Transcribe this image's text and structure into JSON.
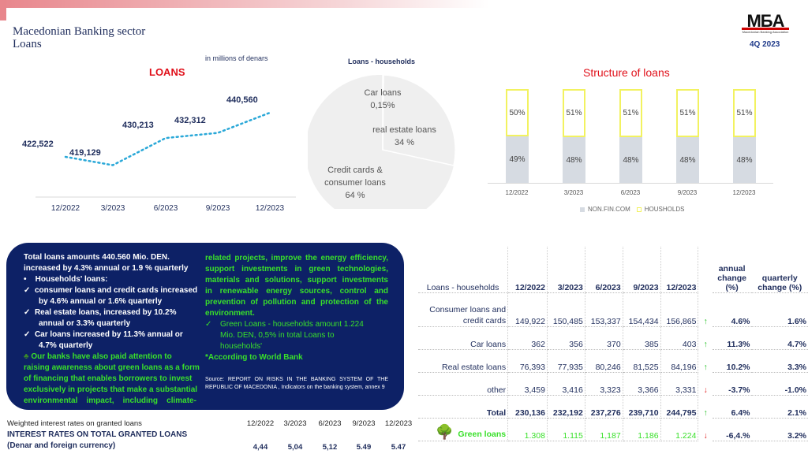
{
  "header": {
    "title_line1": "Macedonian Banking sector",
    "title_line2": "Loans",
    "logo_text": "MБA",
    "logo_sub": "Macedonian Banking Association",
    "quarter": "4Q 2023"
  },
  "colors": {
    "line": "#2aa8d8",
    "households_border": "#f2f260",
    "nonfin": "#d6dbe2",
    "pie": "#efefef",
    "box": "#0d2166",
    "green": "#39e02a",
    "title_red": "#e0101a"
  },
  "chart_data": [
    {
      "type": "line",
      "title": "LOANS",
      "subtitle": "in millions of denars",
      "categories": [
        "12/2022",
        "3/2023",
        "6/2023",
        "9/2023",
        "12/2023"
      ],
      "values": [
        422522,
        419129,
        430213,
        432312,
        440560
      ],
      "labels": [
        "422,522",
        "419,129",
        "430,213",
        "432,312",
        "440,560"
      ]
    },
    {
      "type": "pie",
      "title": "Loans -  households",
      "slices": [
        {
          "label": "Car loans",
          "value_label": "0,15%",
          "value": 0.15
        },
        {
          "label": "real estate loans",
          "value_label": "34 %",
          "value": 34
        },
        {
          "label": "Credit cards & consumer loans",
          "value_label": "64 %",
          "value": 64
        }
      ]
    },
    {
      "type": "bar",
      "stacked": true,
      "title": "Structure of loans",
      "categories": [
        "12/2022",
        "3/2023",
        "6/2023",
        "9/2023",
        "12/2023"
      ],
      "series": [
        {
          "name": "NON.FIN.COM",
          "values": [
            49,
            48,
            48,
            48,
            48
          ]
        },
        {
          "name": "HOUSHOLDS",
          "values": [
            50,
            51,
            51,
            51,
            51
          ]
        }
      ],
      "legend": "bottom"
    }
  ],
  "text_box": {
    "left": [
      "Total loans amounts 440.560 Mio. DEN.",
      "increased by 4.3% annual or 1.9 % quarterly",
      "Households' loans:",
      "consumer loans and credit cards increased",
      "by 4.6% annual or 1.6% quarterly",
      "Real estate loans, increased by 10.2%",
      "annual or 3.3% quarterly",
      "Car loans increased by 11.3% annual or",
      "4.7% quarterly"
    ],
    "green_left": [
      "Our banks have also paid attention to",
      "raising awareness about green loans as a form",
      "of financing that enables borrowers to invest",
      "exclusively in projects that make a substantial",
      "environmental    impact,    including    climate-"
    ],
    "green_right": [
      "related projects, improve the energy efficiency,",
      "support investments in green technologies,",
      "materials and solutions, support investments",
      "in renewable energy sources, control and",
      "prevention of pollution and protection of the",
      "environment."
    ],
    "green_loans": [
      "Green Loans -  households amount 1.224",
      "Mio.  DEN,  0,5%  in  total  Loans  to",
      "households'"
    ],
    "world_bank": "*According to World Bank",
    "source": "Source: REPORT ON RISKS IN THE BANKING SYSTEM OF THE REPUBLIC OF MACEDONIA , Indicators on the banking system, annex 9"
  },
  "rates": {
    "caption": "Weighted interest rates on granted loans",
    "title": "INTEREST RATES ON TOTAL GRANTED LOANS",
    "subtitle": "(Denar and foreign currency)",
    "periods": [
      "12/2022",
      "3/2023",
      "6/2023",
      "9/2023",
      "12/2023"
    ],
    "values": [
      "4,44",
      "5,04",
      "5,12",
      "5.49",
      "5.47"
    ]
  },
  "table": {
    "headers": [
      "Loans -  households",
      "12/2022",
      "3/2023",
      "6/2023",
      "9/2023",
      "12/2023",
      "",
      "annual change (%)",
      "quarterly change (%)"
    ],
    "rows": [
      {
        "label": "Consumer loans and credit cards",
        "values": [
          "149,922",
          "150,485",
          "153,337",
          "154,434",
          "156,865"
        ],
        "trend": "up",
        "annual": "4.6%",
        "quarterly": "1.6%"
      },
      {
        "label": "Car loans",
        "values": [
          "362",
          "356",
          "370",
          "385",
          "403"
        ],
        "trend": "up",
        "annual": "11.3%",
        "quarterly": "4.7%"
      },
      {
        "label": "Real estate loans",
        "values": [
          "76,393",
          "77,935",
          "80,246",
          "81,525",
          "84,196"
        ],
        "trend": "up",
        "annual": "10.2%",
        "quarterly": "3.3%"
      },
      {
        "label": "other",
        "values": [
          "3,459",
          "3,416",
          "3,323",
          "3,366",
          "3,331"
        ],
        "trend": "down",
        "annual": "-3.7%",
        "quarterly": "-1.0%"
      },
      {
        "label": "Total",
        "values": [
          "230,136",
          "232,192",
          "237,276",
          "239,710",
          "244,795"
        ],
        "trend": "up",
        "annual": "6.4%",
        "quarterly": "2.1%"
      },
      {
        "label": "Green loans",
        "values": [
          "1.308",
          "1.115",
          "1,187",
          "1.186",
          "1.224"
        ],
        "trend": "down",
        "annual": "-6,4.%",
        "quarterly": "3.2%"
      }
    ]
  }
}
